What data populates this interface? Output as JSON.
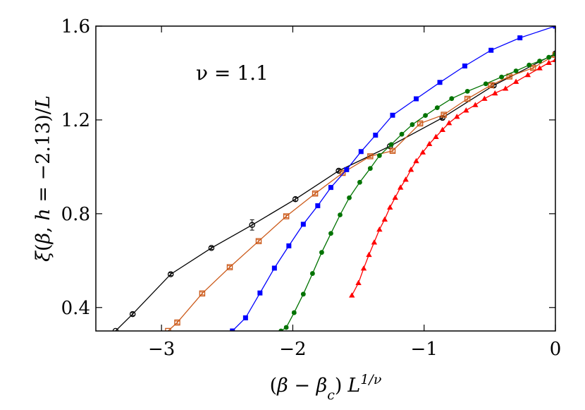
{
  "chart_data": {
    "type": "line",
    "title": "",
    "xlabel": "(β − β_c) L^{1/ν}",
    "xlabel_parts": {
      "open": "(",
      "beta1": "β",
      "minus": " − ",
      "beta2": "β",
      "sub": "c",
      "close": ")",
      "L": "L",
      "exp": "1/ν"
    },
    "ylabel": "ξ(β, h = −2.13)/L",
    "ylabel_parts": {
      "xi": "ξ",
      "open": "(",
      "beta": "β",
      "sep": ", ",
      "h": "h",
      "eq": " = ",
      "val": "−2.13",
      "close": ")",
      "slash": "/",
      "L": "L"
    },
    "annotation": "ν = 1.1",
    "xlim": [
      -3.5,
      0
    ],
    "ylim": [
      0.3,
      1.6
    ],
    "xticks": [
      -3,
      -2,
      -1,
      0
    ],
    "xtick_labels": [
      "−3",
      "−2",
      "−1",
      "0"
    ],
    "yticks": [
      0.4,
      0.8,
      1.2,
      1.6
    ],
    "ytick_labels": [
      "0.4",
      "0.8",
      "1.2",
      "1.6"
    ],
    "grid": false,
    "series": [
      {
        "color": "#000000",
        "marker": "open-circle",
        "x": [
          -3.35,
          -3.22,
          -2.93,
          -2.62,
          -2.31,
          -1.98,
          -1.65,
          -1.26,
          -0.86,
          -0.47,
          0.0
        ],
        "y": [
          0.3,
          0.372,
          0.542,
          0.654,
          0.752,
          0.862,
          0.983,
          1.088,
          1.209,
          1.347,
          1.483
        ],
        "err": [
          0,
          0.006,
          0.006,
          0.006,
          0.022,
          0.008,
          0.006,
          0.008,
          0.006,
          0.006,
          0.006
        ]
      },
      {
        "color": "#cc5a1a",
        "marker": "open-square",
        "x": [
          -2.95,
          -2.88,
          -2.69,
          -2.48,
          -2.26,
          -2.05,
          -1.83,
          -1.62,
          -1.41,
          -1.24,
          -1.03,
          -0.85,
          -0.67,
          -0.49,
          -0.35,
          -0.17,
          0.0
        ],
        "y": [
          0.3,
          0.336,
          0.46,
          0.572,
          0.683,
          0.789,
          0.886,
          0.974,
          1.045,
          1.068,
          1.185,
          1.222,
          1.29,
          1.348,
          1.385,
          1.422,
          1.477
        ],
        "err": [
          0,
          0.006,
          0.006,
          0.006,
          0.006,
          0.006,
          0.006,
          0.006,
          0.006,
          0.006,
          0.006,
          0.006,
          0.006,
          0.006,
          0.006,
          0.006,
          0.006
        ]
      },
      {
        "color": "#0000ff",
        "marker": "filled-square",
        "x": [
          -2.46,
          -2.36,
          -2.25,
          -2.14,
          -2.03,
          -1.92,
          -1.81,
          -1.71,
          -1.59,
          -1.48,
          -1.37,
          -1.24,
          -1.06,
          -0.88,
          -0.69,
          -0.49,
          -0.27,
          0.0
        ],
        "y": [
          0.3,
          0.356,
          0.462,
          0.568,
          0.663,
          0.755,
          0.834,
          0.912,
          0.988,
          1.065,
          1.135,
          1.22,
          1.29,
          1.36,
          1.43,
          1.497,
          1.55,
          1.6
        ],
        "err": [
          0,
          0.004,
          0.004,
          0.004,
          0.004,
          0.004,
          0.004,
          0.004,
          0.004,
          0.004,
          0.004,
          0.004,
          0.004,
          0.004,
          0.004,
          0.004,
          0.004,
          0.004
        ]
      },
      {
        "color": "#007300",
        "marker": "filled-circle",
        "x": [
          -2.09,
          -2.05,
          -1.99,
          -1.92,
          -1.85,
          -1.78,
          -1.71,
          -1.64,
          -1.57,
          -1.49,
          -1.41,
          -1.34,
          -1.25,
          -1.17,
          -1.09,
          -0.99,
          -0.9,
          -0.79,
          -0.67,
          -0.53,
          -0.41,
          -0.3,
          -0.2,
          -0.12,
          -0.05,
          0.0
        ],
        "y": [
          0.3,
          0.315,
          0.378,
          0.457,
          0.545,
          0.635,
          0.716,
          0.795,
          0.868,
          0.934,
          0.993,
          1.048,
          1.095,
          1.139,
          1.18,
          1.219,
          1.252,
          1.291,
          1.322,
          1.354,
          1.383,
          1.409,
          1.434,
          1.451,
          1.467,
          1.48
        ],
        "err": [
          0,
          0.004,
          0.004,
          0.004,
          0.004,
          0.004,
          0.004,
          0.004,
          0.004,
          0.004,
          0.004,
          0.004,
          0.004,
          0.004,
          0.004,
          0.004,
          0.004,
          0.004,
          0.004,
          0.004,
          0.004,
          0.004,
          0.004,
          0.004,
          0.004,
          0.004
        ]
      },
      {
        "color": "#ff0000",
        "marker": "filled-triangle",
        "x": [
          -1.55,
          -1.5,
          -1.46,
          -1.42,
          -1.38,
          -1.34,
          -1.3,
          -1.26,
          -1.22,
          -1.18,
          -1.14,
          -1.1,
          -1.06,
          -1.01,
          -0.96,
          -0.91,
          -0.86,
          -0.81,
          -0.75,
          -0.68,
          -0.61,
          -0.54,
          -0.46,
          -0.38,
          -0.3,
          -0.21,
          -0.12,
          -0.05,
          0.0
        ],
        "y": [
          0.452,
          0.505,
          0.567,
          0.625,
          0.678,
          0.733,
          0.776,
          0.827,
          0.869,
          0.912,
          0.946,
          0.988,
          1.025,
          1.062,
          1.098,
          1.128,
          1.158,
          1.187,
          1.214,
          1.241,
          1.264,
          1.291,
          1.314,
          1.334,
          1.363,
          1.392,
          1.421,
          1.444,
          1.456
        ],
        "err": [
          0,
          0,
          0,
          0,
          0,
          0,
          0,
          0,
          0,
          0,
          0,
          0,
          0,
          0,
          0,
          0,
          0,
          0,
          0,
          0,
          0,
          0,
          0,
          0,
          0,
          0,
          0,
          0,
          0
        ]
      }
    ]
  }
}
